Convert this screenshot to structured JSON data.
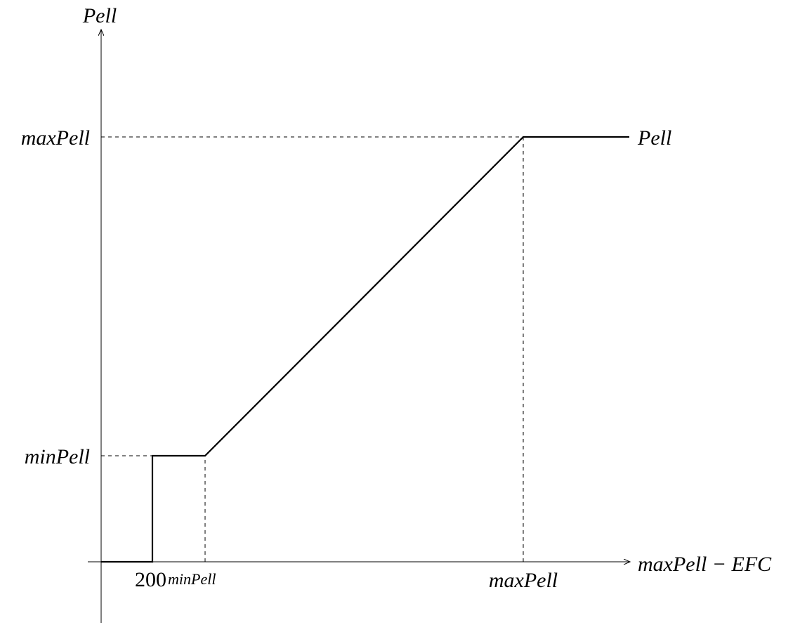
{
  "chart_data": {
    "type": "line",
    "title": "",
    "xlabel": "maxPell − EFC",
    "ylabel": "Pell",
    "series": [
      {
        "name": "Pell",
        "points": [
          {
            "x": "0",
            "y": "0"
          },
          {
            "x": "200",
            "y": "0"
          },
          {
            "x": "200",
            "y": "minPell"
          },
          {
            "x": "minPell",
            "y": "minPell"
          },
          {
            "x": "maxPell",
            "y": "maxPell"
          },
          {
            "x": "end",
            "y": "maxPell"
          }
        ]
      }
    ],
    "x_ticks": [
      {
        "id": "200",
        "label": "200",
        "style": "roman"
      },
      {
        "id": "minPell",
        "label": "minPell",
        "style": "italic-small"
      },
      {
        "id": "maxPell",
        "label": "maxPell",
        "style": "italic"
      }
    ],
    "y_ticks": [
      {
        "id": "minPell",
        "label": "minPell"
      },
      {
        "id": "maxPell",
        "label": "maxPell"
      }
    ],
    "guides": "dashed reference lines from tick levels to the curve",
    "grid": false,
    "legend": "none"
  }
}
